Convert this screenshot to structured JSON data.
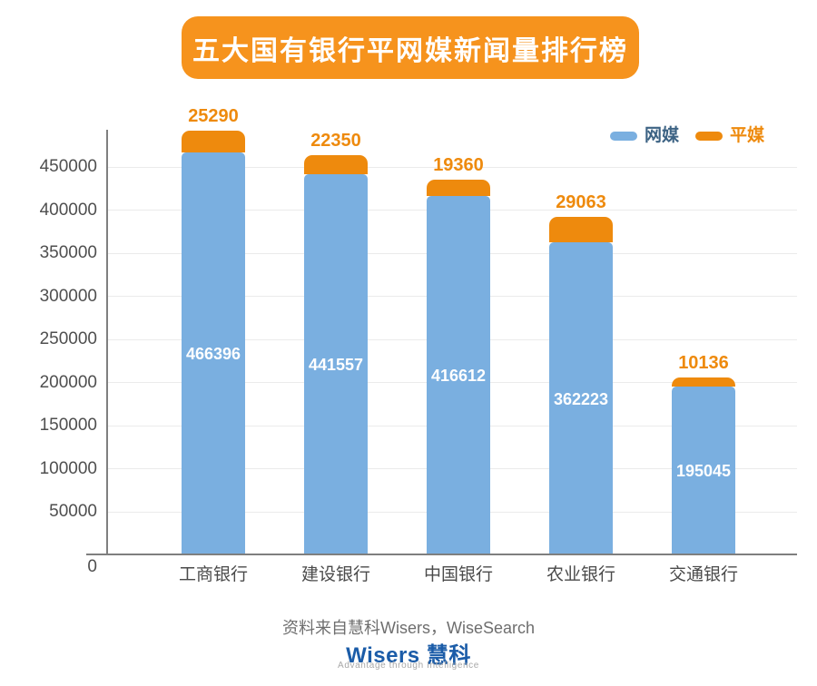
{
  "title": "五大国有银行平网媒新闻量排行榜",
  "legend": {
    "items": [
      {
        "label": "网媒",
        "color": "#7AAFE0",
        "text_color": "#3D6384"
      },
      {
        "label": "平媒",
        "color": "#EE8A0D",
        "text_color": "#EE8A0D"
      }
    ]
  },
  "chart_data": {
    "type": "bar",
    "stacked": true,
    "title": "五大国有银行平网媒新闻量排行榜",
    "categories": [
      "工商银行",
      "建设银行",
      "中国银行",
      "农业银行",
      "交通银行"
    ],
    "series": [
      {
        "name": "网媒",
        "color": "#7AAFE0",
        "label_color": "#FFFFFF",
        "values": [
          466396,
          441557,
          416612,
          362223,
          195045
        ]
      },
      {
        "name": "平媒",
        "color": "#EE8A0D",
        "label_color": "#EE8A0D",
        "values": [
          25290,
          22350,
          19360,
          29063,
          10136
        ]
      }
    ],
    "y_ticks": [
      0,
      50000,
      100000,
      150000,
      200000,
      250000,
      300000,
      350000,
      400000,
      450000
    ],
    "ylim": [
      0,
      495000
    ],
    "grid": true,
    "legend_position": "top-right"
  },
  "footer": {
    "source_text": "资料来自慧科Wisers，WiseSearch",
    "logo_text": "Wisers 慧科",
    "logo_tagline": "Advantage through Intelligence"
  },
  "colors": {
    "title_bg": "#F6931D",
    "title_text": "#FFFFFF",
    "bar_blue": "#7AAFE0",
    "bar_orange": "#EE8A0D",
    "axis_line": "#7F7F7F",
    "gridline": "#EBEBEB",
    "tick_label": "#4F4F4F",
    "category_label": "#4A4A4A",
    "source_text": "#6E6E6E",
    "logo_blue": "#1B5CA8",
    "tagline_gray": "#A8A8A8"
  }
}
